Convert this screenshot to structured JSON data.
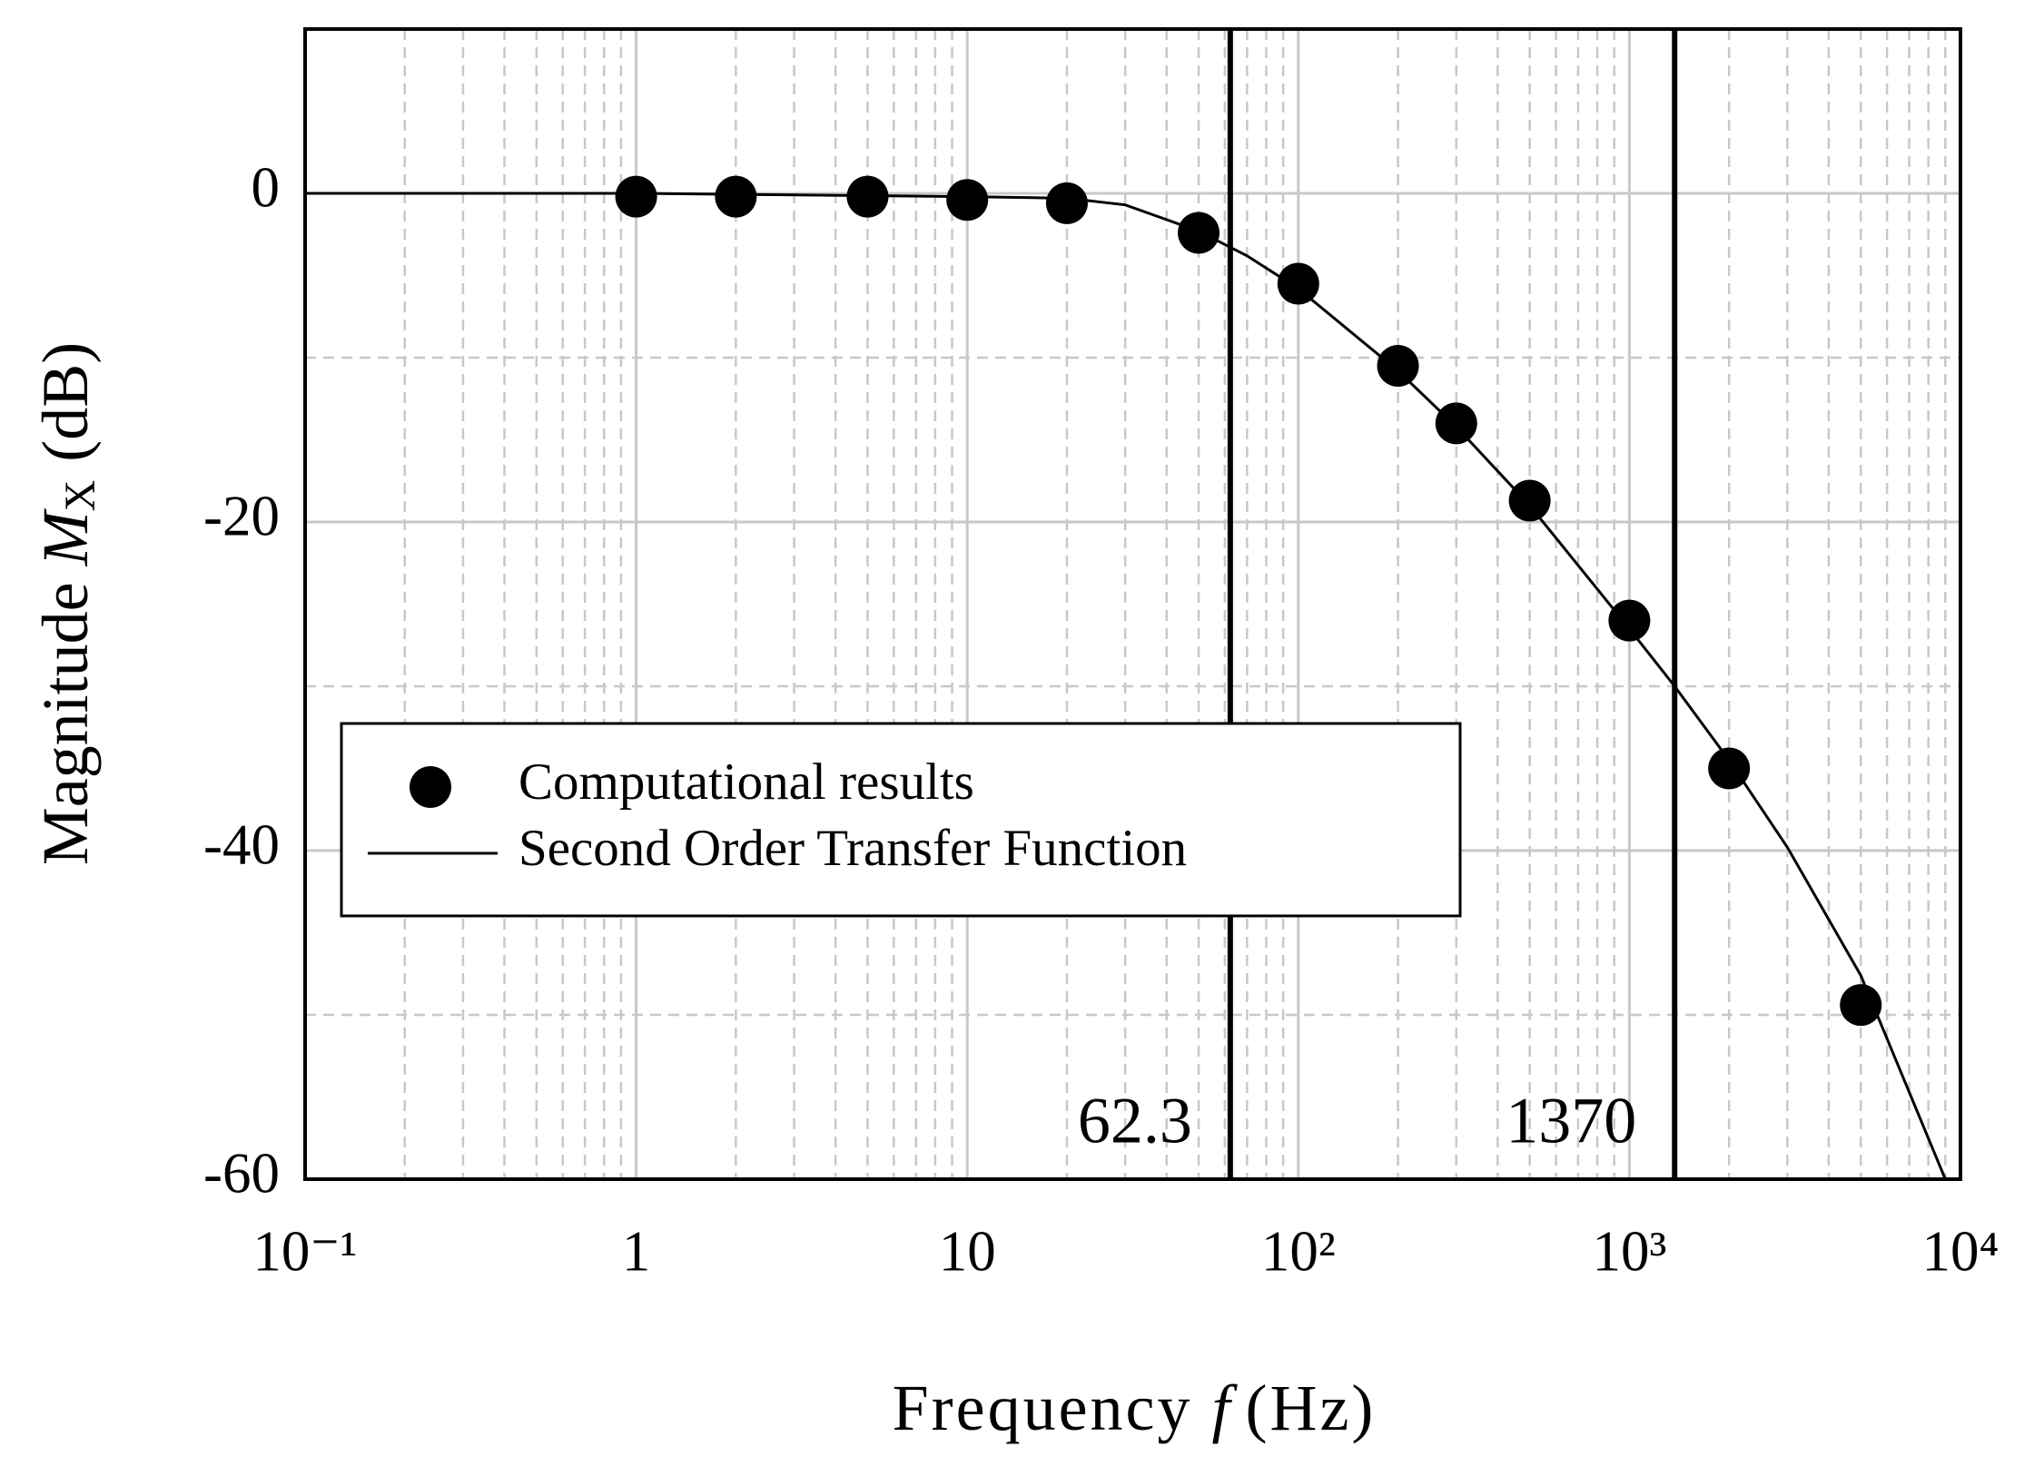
{
  "chart_data": {
    "type": "scatter-line",
    "xlabel": {
      "text": "Frequency ",
      "var": "f",
      "unit": "(Hz)"
    },
    "ylabel": {
      "text": "Magnitude ",
      "var": "M",
      "sub": "X",
      "unit": "(dB)"
    },
    "log_x": true,
    "grid": true,
    "xlim": [
      0.1,
      10000
    ],
    "ylim": [
      -60,
      10
    ],
    "xticks": [
      {
        "value": 0.1,
        "label": "10⁻¹"
      },
      1,
      10,
      {
        "value": 100,
        "label": "10²"
      },
      {
        "value": 1000,
        "label": "10³"
      },
      {
        "value": 10000,
        "label": "10⁴"
      }
    ],
    "xminorticks": [
      0.2,
      0.3,
      0.4,
      0.5,
      0.6,
      0.7,
      0.8,
      0.9,
      2,
      3,
      4,
      5,
      6,
      7,
      8,
      9,
      20,
      30,
      40,
      50,
      60,
      70,
      80,
      90,
      200,
      300,
      400,
      500,
      600,
      700,
      800,
      900,
      2000,
      3000,
      4000,
      5000,
      6000,
      7000,
      8000,
      9000
    ],
    "yticks": [
      -60,
      -40,
      -20,
      0
    ],
    "yminorticks": [
      -50,
      -30,
      -10
    ],
    "vlines": [
      62.3,
      1370
    ],
    "legend_position": "center-left",
    "series": [
      {
        "name": "Computational results",
        "kind": "points",
        "color": "#000000",
        "x": [
          1,
          2,
          5,
          10,
          20,
          50,
          100,
          200,
          300,
          500,
          1000,
          2000,
          5000
        ],
        "values": [
          -0.2,
          -0.2,
          -0.2,
          -0.4,
          -0.6,
          -2.4,
          -5.5,
          -10.5,
          -14,
          -18.7,
          -26,
          -35,
          -49.4
        ]
      },
      {
        "name": "Second Order Transfer Function",
        "kind": "line",
        "color": "#000000",
        "x": [
          0.1,
          1,
          10,
          20,
          30,
          50,
          70,
          100,
          200,
          300,
          500,
          1000,
          1370,
          2000,
          3000,
          5000,
          9000
        ],
        "values": [
          0,
          0,
          -0.2,
          -0.3,
          -0.7,
          -2.3,
          -3.8,
          -5.8,
          -10.8,
          -14.2,
          -19,
          -26.5,
          -30,
          -34.5,
          -39.8,
          -47.6,
          -60
        ]
      }
    ]
  }
}
